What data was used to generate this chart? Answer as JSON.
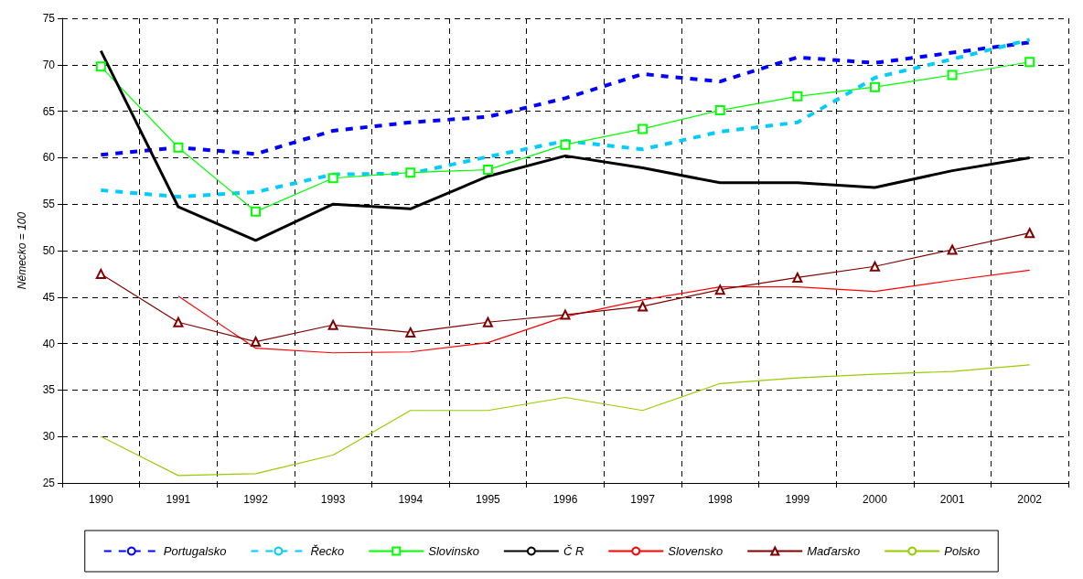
{
  "chart_data": {
    "type": "line",
    "ylabel": "Německo = 100",
    "categories": [
      "1990",
      "1991",
      "1992",
      "1993",
      "1994",
      "1995",
      "1996",
      "1997",
      "1998",
      "1999",
      "2000",
      "2001",
      "2002"
    ],
    "ylim": [
      25,
      75
    ],
    "yticks": [
      25,
      30,
      35,
      40,
      45,
      50,
      55,
      60,
      65,
      70,
      75
    ],
    "grid": true,
    "legend": "bottom",
    "series": [
      {
        "name": "Portugalsko",
        "color": "#0000ff",
        "line_style": "dashed",
        "marker": "none",
        "values": [
          60.3,
          61.1,
          60.4,
          62.9,
          63.8,
          64.4,
          66.4,
          69.0,
          68.2,
          70.8,
          70.2,
          71.3,
          72.4
        ]
      },
      {
        "name": "Řecko",
        "color": "#00ccff",
        "line_style": "dashed",
        "marker": "none",
        "values": [
          56.5,
          55.8,
          56.3,
          58.2,
          58.3,
          60.1,
          61.8,
          60.9,
          62.8,
          63.8,
          68.6,
          70.6,
          72.7
        ]
      },
      {
        "name": "Slovinsko",
        "color": "#00ff00",
        "line_style": "solid",
        "marker": "square",
        "values": [
          69.8,
          61.1,
          54.2,
          57.8,
          58.4,
          58.7,
          61.4,
          63.1,
          65.1,
          66.6,
          67.6,
          68.9,
          70.3
        ]
      },
      {
        "name": "Č R",
        "color": "#000000",
        "line_style": "solid",
        "marker": "none",
        "values": [
          71.5,
          54.7,
          51.1,
          55.0,
          54.5,
          58.0,
          60.2,
          58.9,
          57.3,
          57.3,
          56.8,
          58.6,
          60.0
        ]
      },
      {
        "name": "Slovensko",
        "color": "#ff0000",
        "line_style": "solid",
        "marker": "none",
        "values": [
          null,
          45.1,
          39.5,
          39.0,
          39.1,
          40.1,
          42.9,
          44.7,
          46.1,
          46.1,
          45.6,
          46.8,
          47.9
        ]
      },
      {
        "name": "Maďarsko",
        "color": "#800000",
        "line_style": "solid",
        "marker": "triangle",
        "values": [
          47.5,
          42.3,
          40.2,
          42.0,
          41.2,
          42.3,
          43.1,
          44.0,
          45.8,
          47.1,
          48.3,
          50.1,
          51.9
        ]
      },
      {
        "name": "Polsko",
        "color": "#99cc00",
        "line_style": "solid",
        "marker": "none",
        "values": [
          30.0,
          25.8,
          26.0,
          28.0,
          32.8,
          32.8,
          34.2,
          32.8,
          35.7,
          36.3,
          36.7,
          37.0,
          37.7
        ]
      }
    ]
  }
}
